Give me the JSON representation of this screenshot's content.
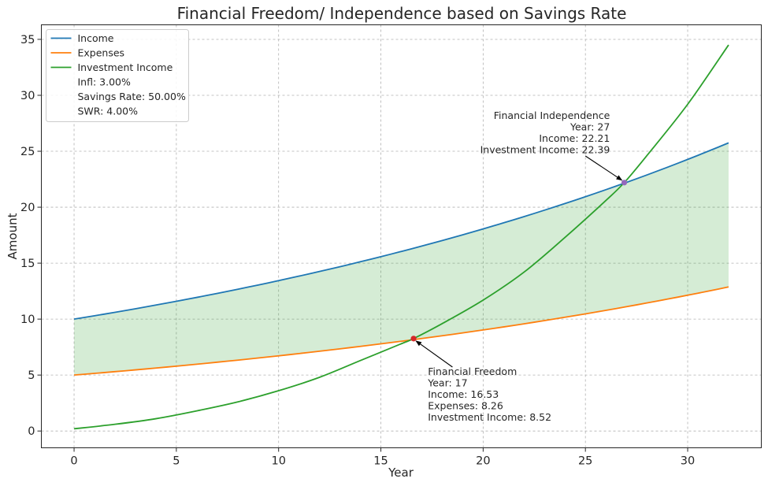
{
  "chart_data": {
    "type": "line",
    "title": "Financial Freedom/ Independence based on Savings Rate",
    "xlabel": "Year",
    "ylabel": "Amount",
    "xlim": [
      -1.6,
      33.6
    ],
    "ylim": [
      -1.5,
      36.3
    ],
    "x_ticks": [
      0,
      5,
      10,
      15,
      20,
      25,
      30
    ],
    "y_ticks": [
      0,
      5,
      10,
      15,
      20,
      25,
      30,
      35
    ],
    "grid": true,
    "legend_position": "top-left",
    "series": [
      {
        "name": "Income",
        "color": "#1f77b4",
        "start": 10,
        "growth_rate": 0.03,
        "x_end": 32
      },
      {
        "name": "Expenses",
        "color": "#ff7f0e",
        "start": 5,
        "growth_rate": 0.03,
        "x_end": 32
      },
      {
        "name": "Investment Income",
        "color": "#2ca02c",
        "x_end": 32,
        "points": [
          [
            0,
            0.2
          ],
          [
            2,
            0.6
          ],
          [
            4,
            1.1
          ],
          [
            6,
            1.8
          ],
          [
            8,
            2.6
          ],
          [
            10,
            3.6
          ],
          [
            12,
            4.8
          ],
          [
            14,
            6.3
          ],
          [
            16,
            7.8
          ],
          [
            16.6,
            8.26
          ],
          [
            18,
            9.6
          ],
          [
            20,
            11.7
          ],
          [
            22,
            14.2
          ],
          [
            24,
            17.3
          ],
          [
            26,
            20.6
          ],
          [
            26.9,
            22.2
          ],
          [
            28,
            24.6
          ],
          [
            30,
            29.2
          ],
          [
            32,
            34.5
          ]
        ]
      }
    ],
    "fill_between": {
      "upper": "Income",
      "lower": "Expenses",
      "color": "#2ca02c",
      "opacity": 0.2
    },
    "legend_extra": [
      "Infl: 3.00%",
      "Savings Rate: 50.00%",
      "SWR: 4.00%"
    ],
    "markers": [
      {
        "name": "Financial Freedom",
        "x": 16.6,
        "y": 8.26,
        "color": "#d62728"
      },
      {
        "name": "Financial Independence",
        "x": 26.9,
        "y": 22.2,
        "color": "#9467bd"
      }
    ],
    "annotations": {
      "freedom": {
        "lines": [
          "Financial Freedom",
          "Year: 17",
          "Income: 16.53",
          "Expenses: 8.26",
          "Investment Income: 8.52"
        ],
        "align": "left",
        "arrow_to": [
          16.6,
          8.26
        ]
      },
      "independence": {
        "lines": [
          "Financial Independence",
          "Year: 27",
          "Income: 22.21",
          "Investment Income: 22.39"
        ],
        "align": "right",
        "arrow_to": [
          26.9,
          22.2
        ]
      }
    }
  }
}
